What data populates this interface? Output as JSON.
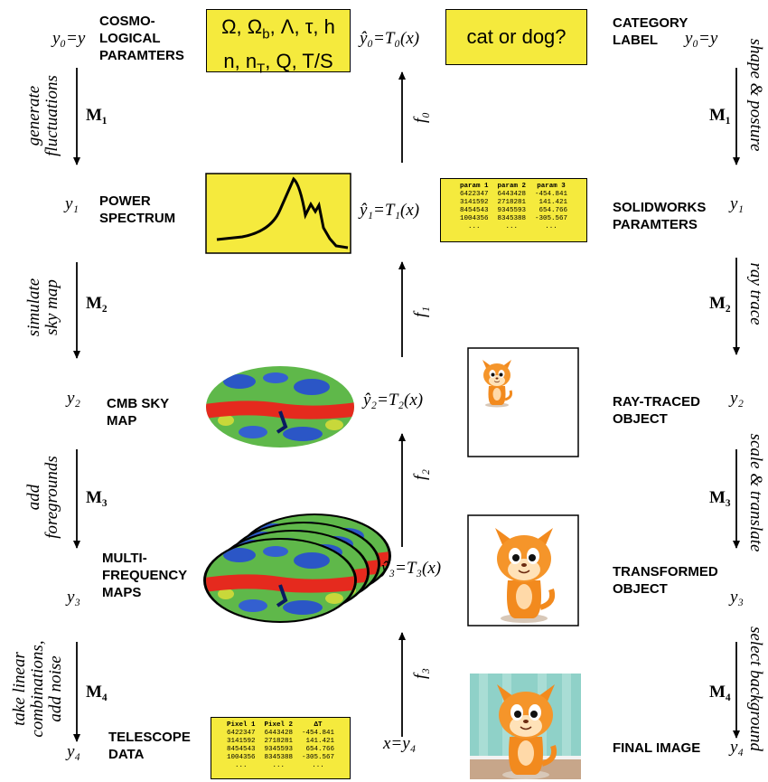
{
  "left": {
    "steps": [
      {
        "y": "y₀=y",
        "label": [
          "COSMO-",
          "LOGICAL",
          "PARAMTERS"
        ]
      },
      {
        "y": "y₁",
        "label": [
          "POWER",
          "SPECTRUM"
        ]
      },
      {
        "y": "y₂",
        "label": [
          "CMB SKY",
          "MAP"
        ]
      },
      {
        "y": "y₃",
        "label": [
          "MULTI-",
          "FREQUENCY",
          "MAPS"
        ]
      },
      {
        "y": "y₄",
        "label": [
          "TELESCOPE",
          "DATA"
        ]
      }
    ],
    "transitions": [
      {
        "m": "M₁",
        "op": [
          "generate",
          "fluctuations"
        ]
      },
      {
        "m": "M₂",
        "op": [
          "simulate",
          "sky map"
        ]
      },
      {
        "m": "M₃",
        "op": [
          "add",
          "foregrounds"
        ]
      },
      {
        "m": "M₄",
        "op": [
          "take linear",
          "combinations,",
          "add noise"
        ]
      }
    ]
  },
  "middle": {
    "estimates": [
      "ŷ₀=T₀(x)",
      "ŷ₁=T₁(x)",
      "ŷ₂=T₂(x)",
      "ŷ₃=T₃(x)",
      "x=y₄"
    ],
    "functions": [
      "f₀",
      "f₁",
      "f₂",
      "f₃"
    ]
  },
  "right": {
    "steps": [
      {
        "y": "y₀=y",
        "label": [
          "CATEGORY",
          "LABEL"
        ]
      },
      {
        "y": "y₁",
        "label": [
          "SOLIDWORKS",
          "PARAMTERS"
        ]
      },
      {
        "y": "y₂",
        "label": [
          "RAY-TRACED",
          "OBJECT"
        ]
      },
      {
        "y": "y₃",
        "label": [
          "TRANSFORMED",
          "OBJECT"
        ]
      },
      {
        "y": "y₄",
        "label": [
          "FINAL IMAGE"
        ]
      }
    ],
    "transitions": [
      {
        "m": "M₁",
        "op": [
          "shape & posture"
        ]
      },
      {
        "m": "M₂",
        "op": [
          "ray trace"
        ]
      },
      {
        "m": "M₃",
        "op": [
          "scale & translate"
        ]
      },
      {
        "m": "M₄",
        "op": [
          "select background"
        ]
      }
    ]
  },
  "cosmo_params": [
    [
      {
        "text": "Ω, Ω"
      },
      {
        "sub": "b"
      },
      {
        "text": ", Λ, τ, h"
      }
    ],
    [
      {
        "text": "n, n"
      },
      {
        "sub": "T"
      },
      {
        "text": ", Q, T/S"
      }
    ]
  ],
  "question": "cat or dog?",
  "telescope_table": {
    "header": [
      "Pixel 1",
      "Pixel 2",
      "ΔT"
    ],
    "rows": [
      [
        "6422347",
        "6443428",
        "-454.841"
      ],
      [
        "3141592",
        "2718281",
        "141.421"
      ],
      [
        "8454543",
        "9345593",
        "654.766"
      ],
      [
        "1004356",
        "8345388",
        "-305.567"
      ],
      [
        "...",
        "...",
        "..."
      ]
    ]
  },
  "solidworks_table": {
    "header": [
      "param 1",
      "param 2",
      "param 3"
    ],
    "rows": [
      [
        "6422347",
        "6443428",
        "-454.841"
      ],
      [
        "3141592",
        "2718281",
        "141.421"
      ],
      [
        "8454543",
        "9345593",
        "654.766"
      ],
      [
        "1004356",
        "8345388",
        "-305.567"
      ],
      [
        "...",
        "...",
        "..."
      ]
    ]
  }
}
